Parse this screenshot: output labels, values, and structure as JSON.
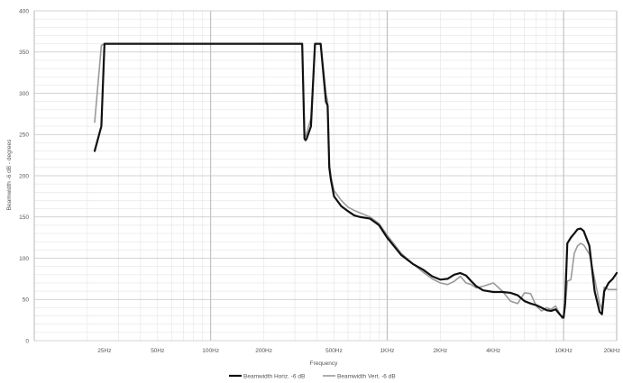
{
  "chart_data": {
    "type": "line",
    "xlabel": "Frequency",
    "ylabel": "Beamwidth -6 dB - degrees",
    "x_scale": "log",
    "xlim": [
      10,
      20000
    ],
    "ylim": [
      0,
      400
    ],
    "grid": true,
    "legend_placement": "bottom-center",
    "y_ticks": [
      0,
      50,
      100,
      150,
      200,
      250,
      300,
      350,
      400
    ],
    "x_tick_labels": [
      {
        "value": 25,
        "label": "25Hz"
      },
      {
        "value": 50,
        "label": "50Hz"
      },
      {
        "value": 100,
        "label": "100Hz"
      },
      {
        "value": 200,
        "label": "200Hz"
      },
      {
        "value": 500,
        "label": "500Hz"
      },
      {
        "value": 1000,
        "label": "1KHz"
      },
      {
        "value": 2000,
        "label": "2KHz"
      },
      {
        "value": 4000,
        "label": "4KHz"
      },
      {
        "value": 10000,
        "label": "10KHz"
      },
      {
        "value": 20000,
        "label": "20kHz"
      }
    ],
    "series": [
      {
        "name": "Beamwidth Horiz. -6 dB",
        "color": "#111111",
        "width": 2.2,
        "x": [
          22,
          24,
          25,
          26,
          100,
          200,
          330,
          340,
          345,
          350,
          370,
          390,
          400,
          420,
          450,
          460,
          470,
          480,
          490,
          500,
          550,
          600,
          650,
          700,
          800,
          900,
          1000,
          1200,
          1400,
          1600,
          1800,
          2000,
          2200,
          2400,
          2600,
          2800,
          3000,
          3200,
          3500,
          4000,
          4500,
          5000,
          5500,
          6000,
          6500,
          7000,
          7500,
          8000,
          8500,
          9000,
          9500,
          9800,
          10000,
          10200,
          10500,
          11000,
          11500,
          12000,
          12500,
          13000,
          14000,
          15000,
          16000,
          16500,
          17000,
          18000,
          19000,
          20000
        ],
        "y": [
          230,
          260,
          360,
          360,
          360,
          360,
          360,
          245,
          243,
          245,
          260,
          360,
          360,
          360,
          290,
          285,
          210,
          195,
          185,
          175,
          163,
          157,
          152,
          150,
          148,
          140,
          125,
          104,
          93,
          86,
          78,
          74,
          75,
          80,
          82,
          79,
          72,
          66,
          61,
          59,
          59,
          58,
          55,
          48,
          45,
          43,
          40,
          37,
          36,
          38,
          32,
          29,
          28,
          45,
          118,
          125,
          130,
          135,
          136,
          133,
          115,
          60,
          35,
          32,
          60,
          70,
          75,
          82
        ]
      },
      {
        "name": "Beamwidth Vert. -6 dB",
        "color": "#9a9a9a",
        "width": 1.6,
        "x": [
          22,
          24,
          25,
          26,
          100,
          200,
          330,
          340,
          345,
          350,
          370,
          390,
          400,
          420,
          450,
          460,
          470,
          480,
          490,
          500,
          550,
          600,
          650,
          700,
          800,
          900,
          1000,
          1200,
          1400,
          1600,
          1800,
          2000,
          2200,
          2400,
          2600,
          2800,
          3000,
          3200,
          3500,
          4000,
          4500,
          5000,
          5500,
          6000,
          6500,
          7000,
          7500,
          8000,
          8500,
          9000,
          9500,
          9800,
          10000,
          10200,
          10500,
          11000,
          11500,
          12000,
          12500,
          13000,
          14000,
          15000,
          16000,
          16500,
          17000,
          18000,
          19000,
          20000
        ],
        "y": [
          265,
          358,
          360,
          360,
          360,
          360,
          360,
          250,
          248,
          252,
          270,
          360,
          360,
          360,
          300,
          290,
          215,
          200,
          190,
          182,
          170,
          162,
          158,
          155,
          150,
          142,
          128,
          106,
          93,
          83,
          75,
          70,
          68,
          72,
          78,
          70,
          68,
          64,
          66,
          70,
          60,
          48,
          45,
          58,
          57,
          42,
          36,
          40,
          38,
          42,
          33,
          27,
          27,
          40,
          72,
          74,
          106,
          115,
          118,
          116,
          105,
          75,
          45,
          38,
          65,
          62,
          62,
          62
        ]
      }
    ]
  }
}
